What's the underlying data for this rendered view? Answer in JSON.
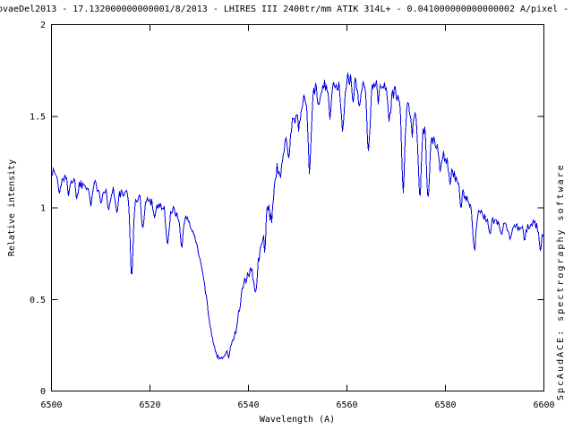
{
  "window": {
    "background": "#ffffff"
  },
  "chart_data": {
    "type": "line",
    "title": "ovaeDel2013 - 17.132000000000001/8/2013 - LHIRES III 2400tr/mm ATIK 314L+ - 0.041000000000000002 A/pixel -",
    "xlabel": "Wavelength (A)",
    "ylabel": "Relative intensity",
    "watermark": "SpcAudACE: spectrography software",
    "xlim": [
      6500,
      6600
    ],
    "ylim": [
      0,
      2
    ],
    "xticks": [
      6500,
      6520,
      6540,
      6560,
      6580,
      6600
    ],
    "yticks": [
      0,
      0.5,
      1,
      1.5,
      2
    ],
    "grid": false,
    "legend": "none",
    "line_color": "#0000e0",
    "axis_color": "#000000",
    "series": [
      {
        "name": "spectrum",
        "description": "noisy stellar spectrum: continuum ~1.2 declining to ~1.0, deep P-Cygni absorption trough to ~0.18 near 6534 A, broad emission peak ~1.7 around 6555-6570 A cut by narrow telluric absorption lines, declining to ~0.86 at 6600 A",
        "envelope": [
          [
            6500,
            1.2
          ],
          [
            6502,
            1.17
          ],
          [
            6504,
            1.15
          ],
          [
            6506,
            1.13
          ],
          [
            6508,
            1.13
          ],
          [
            6510,
            1.11
          ],
          [
            6512,
            1.1
          ],
          [
            6514,
            1.08
          ],
          [
            6516,
            1.06
          ],
          [
            6518,
            1.05
          ],
          [
            6520,
            1.04
          ],
          [
            6522,
            1.01
          ],
          [
            6524,
            0.99
          ],
          [
            6526,
            0.97
          ],
          [
            6527.5,
            0.95
          ],
          [
            6529,
            0.85
          ],
          [
            6530,
            0.74
          ],
          [
            6531,
            0.6
          ],
          [
            6532,
            0.4
          ],
          [
            6533,
            0.24
          ],
          [
            6533.8,
            0.185
          ],
          [
            6534.5,
            0.18
          ],
          [
            6535.5,
            0.21
          ],
          [
            6536.5,
            0.25
          ],
          [
            6537.5,
            0.33
          ],
          [
            6538.5,
            0.5
          ],
          [
            6539.3,
            0.6
          ],
          [
            6540,
            0.63
          ],
          [
            6540.8,
            0.66
          ],
          [
            6541.5,
            0.62
          ],
          [
            6542.3,
            0.75
          ],
          [
            6543,
            0.85
          ],
          [
            6544,
            0.98
          ],
          [
            6545,
            1.1
          ],
          [
            6546,
            1.22
          ],
          [
            6547,
            1.32
          ],
          [
            6548,
            1.42
          ],
          [
            6549,
            1.47
          ],
          [
            6550,
            1.53
          ],
          [
            6551,
            1.58
          ],
          [
            6552,
            1.62
          ],
          [
            6553,
            1.63
          ],
          [
            6554,
            1.65
          ],
          [
            6555,
            1.67
          ],
          [
            6556,
            1.68
          ],
          [
            6557,
            1.66
          ],
          [
            6558,
            1.67
          ],
          [
            6559,
            1.68
          ],
          [
            6560,
            1.7
          ],
          [
            6561,
            1.7
          ],
          [
            6562,
            1.68
          ],
          [
            6563,
            1.67
          ],
          [
            6564,
            1.68
          ],
          [
            6565,
            1.69
          ],
          [
            6566,
            1.7
          ],
          [
            6567,
            1.68
          ],
          [
            6568,
            1.66
          ],
          [
            6569,
            1.64
          ],
          [
            6570,
            1.62
          ],
          [
            6571,
            1.6
          ],
          [
            6572,
            1.57
          ],
          [
            6573,
            1.53
          ],
          [
            6574,
            1.5
          ],
          [
            6575,
            1.46
          ],
          [
            6576,
            1.43
          ],
          [
            6577,
            1.39
          ],
          [
            6578,
            1.35
          ],
          [
            6579,
            1.31
          ],
          [
            6580,
            1.28
          ],
          [
            6581,
            1.22
          ],
          [
            6582,
            1.17
          ],
          [
            6583,
            1.12
          ],
          [
            6584,
            1.06
          ],
          [
            6585,
            1.02
          ],
          [
            6586,
            0.99
          ],
          [
            6587,
            0.97
          ],
          [
            6588,
            0.95
          ],
          [
            6589,
            0.93
          ],
          [
            6590,
            0.93
          ],
          [
            6591,
            0.92
          ],
          [
            6592,
            0.9
          ],
          [
            6593,
            0.89
          ],
          [
            6594,
            0.9
          ],
          [
            6595,
            0.89
          ],
          [
            6596,
            0.88
          ],
          [
            6597,
            0.9
          ],
          [
            6598,
            0.92
          ],
          [
            6599,
            0.88
          ],
          [
            6600,
            0.86
          ]
        ],
        "absorption_lines": [
          [
            6501.6,
            0.1,
            0.25
          ],
          [
            6503.4,
            0.07,
            0.2
          ],
          [
            6505.2,
            0.08,
            0.2
          ],
          [
            6508.0,
            0.11,
            0.25
          ],
          [
            6510.1,
            0.07,
            0.2
          ],
          [
            6511.6,
            0.12,
            0.25
          ],
          [
            6513.3,
            0.12,
            0.25
          ],
          [
            6516.3,
            0.42,
            0.3
          ],
          [
            6518.6,
            0.16,
            0.25
          ],
          [
            6521.0,
            0.08,
            0.2
          ],
          [
            6523.6,
            0.2,
            0.3
          ],
          [
            6526.4,
            0.17,
            0.3
          ],
          [
            6536.0,
            0.04,
            0.2
          ],
          [
            6541.4,
            0.11,
            0.25
          ],
          [
            6543.3,
            0.08,
            0.2
          ],
          [
            6544.6,
            0.13,
            0.25
          ],
          [
            6546.4,
            0.1,
            0.25
          ],
          [
            6548.2,
            0.14,
            0.25
          ],
          [
            6550.3,
            0.12,
            0.25
          ],
          [
            6552.4,
            0.42,
            0.3
          ],
          [
            6554.3,
            0.12,
            0.2
          ],
          [
            6556.6,
            0.18,
            0.25
          ],
          [
            6559.1,
            0.25,
            0.3
          ],
          [
            6561.2,
            0.12,
            0.2
          ],
          [
            6562.6,
            0.14,
            0.2
          ],
          [
            6564.4,
            0.38,
            0.3
          ],
          [
            6566.3,
            0.12,
            0.2
          ],
          [
            6568.6,
            0.18,
            0.25
          ],
          [
            6571.4,
            0.5,
            0.3
          ],
          [
            6573.2,
            0.12,
            0.2
          ],
          [
            6574.8,
            0.42,
            0.3
          ],
          [
            6576.5,
            0.38,
            0.28
          ],
          [
            6579.0,
            0.1,
            0.2
          ],
          [
            6580.9,
            0.08,
            0.2
          ],
          [
            6583.1,
            0.12,
            0.22
          ],
          [
            6585.9,
            0.22,
            0.3
          ],
          [
            6589.0,
            0.07,
            0.2
          ],
          [
            6591.3,
            0.06,
            0.2
          ],
          [
            6593.2,
            0.07,
            0.2
          ],
          [
            6596.1,
            0.06,
            0.2
          ],
          [
            6599.3,
            0.13,
            0.2
          ]
        ],
        "noise": {
          "seed": 1337,
          "regions": [
            {
              "from": 6500,
              "to": 6527,
              "amp": 0.03
            },
            {
              "from": 6527,
              "to": 6537,
              "amp": 0.013
            },
            {
              "from": 6537,
              "to": 6543,
              "amp": 0.035
            },
            {
              "from": 6543,
              "to": 6547,
              "amp": 0.055
            },
            {
              "from": 6547,
              "to": 6572,
              "amp": 0.04
            },
            {
              "from": 6572,
              "to": 6584,
              "amp": 0.03
            },
            {
              "from": 6584,
              "to": 6600,
              "amp": 0.022
            }
          ]
        }
      }
    ]
  }
}
